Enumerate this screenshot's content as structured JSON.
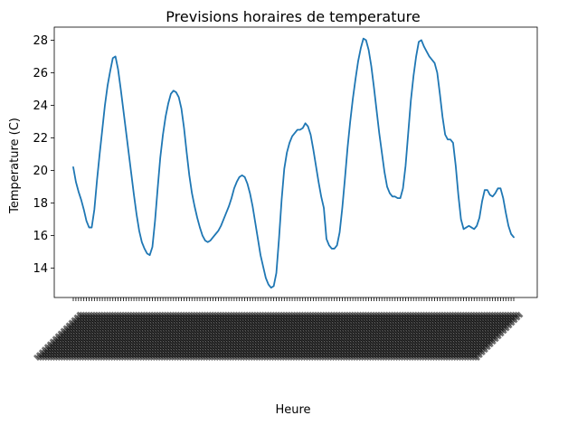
{
  "chart_data": {
    "type": "line",
    "title": "Previsions horaires de temperature",
    "xlabel": "Heure",
    "ylabel": "Temperature (C)",
    "ylim": [
      12.2,
      28.8
    ],
    "yticks": [
      14,
      16,
      18,
      20,
      22,
      24,
      26,
      28
    ],
    "grid": false,
    "legend": "none",
    "x_tick_labels_rotated": true,
    "x_tick_labels_legible": false,
    "series": [
      {
        "color": "#1f77b4",
        "values": [
          20.2,
          19.3,
          18.7,
          18.2,
          17.6,
          16.9,
          16.5,
          16.5,
          17.6,
          19.4,
          21.0,
          22.5,
          24.0,
          25.2,
          26.1,
          26.9,
          27.0,
          26.2,
          25.0,
          23.7,
          22.4,
          21.1,
          19.8,
          18.5,
          17.3,
          16.3,
          15.6,
          15.2,
          14.9,
          14.8,
          15.3,
          16.9,
          18.9,
          20.8,
          22.2,
          23.3,
          24.1,
          24.7,
          24.9,
          24.8,
          24.5,
          23.8,
          22.6,
          21.1,
          19.7,
          18.6,
          17.8,
          17.1,
          16.5,
          16.0,
          15.7,
          15.6,
          15.7,
          15.9,
          16.1,
          16.3,
          16.6,
          17.0,
          17.4,
          17.8,
          18.3,
          18.9,
          19.3,
          19.6,
          19.7,
          19.6,
          19.2,
          18.6,
          17.8,
          16.8,
          15.8,
          14.8,
          14.1,
          13.4,
          13.0,
          12.8,
          12.9,
          13.7,
          15.8,
          18.2,
          20.1,
          21.1,
          21.7,
          22.1,
          22.3,
          22.5,
          22.5,
          22.6,
          22.9,
          22.7,
          22.2,
          21.3,
          20.3,
          19.3,
          18.4,
          17.7,
          15.8,
          15.4,
          15.2,
          15.2,
          15.4,
          16.2,
          17.7,
          19.5,
          21.4,
          23.0,
          24.4,
          25.6,
          26.7,
          27.5,
          28.1,
          28.0,
          27.4,
          26.4,
          25.1,
          23.7,
          22.3,
          21.1,
          19.9,
          19.0,
          18.6,
          18.4,
          18.4,
          18.3,
          18.3,
          18.9,
          20.3,
          22.3,
          24.3,
          25.8,
          27.0,
          27.9,
          28.0,
          27.6,
          27.3,
          27.0,
          26.8,
          26.6,
          26.0,
          24.7,
          23.3,
          22.2,
          21.9,
          21.9,
          21.7,
          20.3,
          18.5,
          17.0,
          16.4,
          16.5,
          16.6,
          16.5,
          16.4,
          16.6,
          17.1,
          18.1,
          18.8,
          18.8,
          18.5,
          18.4,
          18.6,
          18.9,
          18.9,
          18.3,
          17.4,
          16.6,
          16.1,
          15.9
        ]
      }
    ]
  }
}
